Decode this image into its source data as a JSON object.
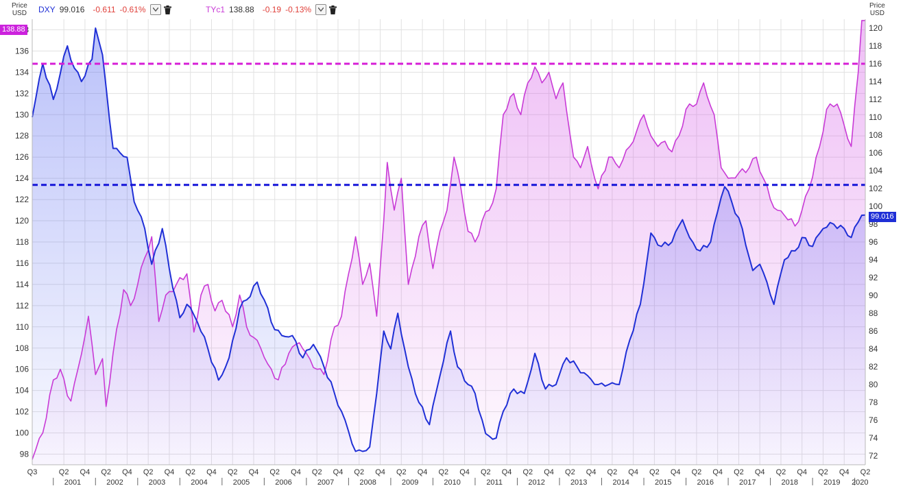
{
  "legend": {
    "dxy": {
      "symbol": "DXY",
      "price": "99.016",
      "change": "-0.611",
      "change_pct": "-0.61%"
    },
    "tyc1": {
      "symbol": "TYc1",
      "price": "138.88",
      "change": "-0.19",
      "change_pct": "-0.13%"
    }
  },
  "axes": {
    "left_title": [
      "Price",
      "USD"
    ],
    "right_title": [
      "Price",
      "USD"
    ]
  },
  "tags": {
    "left": "138.88",
    "right": "99.016"
  },
  "colors": {
    "dxy": "#1f2fd6",
    "tyc1": "#c83ad6",
    "dxy_ref": "#1414d8",
    "tyc1_ref": "#d61ed6",
    "tag_left": "#cc22dd",
    "tag_right": "#1f2fd6"
  },
  "chart_data": {
    "type": "line",
    "x_start": "2000-07",
    "x_end": "2020-04",
    "x_frequency": "monthly",
    "left_axis": {
      "series": "TYc1",
      "ylim": [
        97,
        139
      ],
      "ticks": [
        98,
        100,
        102,
        104,
        106,
        108,
        110,
        112,
        114,
        116,
        118,
        120,
        122,
        124,
        126,
        128,
        130,
        132,
        134,
        136,
        138
      ]
    },
    "right_axis": {
      "series": "DXY",
      "ylim": [
        71,
        121
      ],
      "ticks": [
        72,
        74,
        76,
        78,
        80,
        82,
        84,
        86,
        88,
        90,
        92,
        94,
        96,
        98,
        100,
        102,
        104,
        106,
        108,
        110,
        112,
        114,
        116,
        118,
        120
      ]
    },
    "x_ticks_quarter": [
      "Q3",
      "Q2",
      "Q4",
      "Q2",
      "Q4",
      "Q2",
      "Q4",
      "Q2",
      "Q4",
      "Q2",
      "Q4",
      "Q2",
      "Q4",
      "Q2",
      "Q4",
      "Q2",
      "Q4",
      "Q2",
      "Q4",
      "Q2",
      "Q4",
      "Q2",
      "Q4",
      "Q2",
      "Q4",
      "Q2",
      "Q4",
      "Q2",
      "Q4",
      "Q2",
      "Q4",
      "Q2",
      "Q4",
      "Q2",
      "Q4",
      "Q2",
      "Q4",
      "Q2",
      "Q4",
      "Q2"
    ],
    "x_ticks_year": [
      "2001",
      "2002",
      "2003",
      "2004",
      "2005",
      "2006",
      "2007",
      "2008",
      "2009",
      "2010",
      "2011",
      "2012",
      "2013",
      "2014",
      "2015",
      "2016",
      "2017",
      "2018",
      "2019",
      "2020"
    ],
    "reference_lines": [
      {
        "series": "TYc1",
        "value": 134.8
      },
      {
        "series": "DXY",
        "value": 102.4
      }
    ],
    "series": [
      {
        "name": "DXY",
        "axis": "right",
        "anchors": [
          [
            "2000-07",
            110
          ],
          [
            "2000-10",
            116
          ],
          [
            "2001-01",
            112
          ],
          [
            "2001-05",
            118
          ],
          [
            "2001-07",
            115.5
          ],
          [
            "2001-09",
            114
          ],
          [
            "2001-12",
            116.5
          ],
          [
            "2002-01",
            120
          ],
          [
            "2002-03",
            117
          ],
          [
            "2002-06",
            106.5
          ],
          [
            "2002-08",
            106
          ],
          [
            "2002-10",
            105.5
          ],
          [
            "2002-12",
            100.5
          ],
          [
            "2003-03",
            97.5
          ],
          [
            "2003-05",
            93.5
          ],
          [
            "2003-08",
            97.5
          ],
          [
            "2003-10",
            93
          ],
          [
            "2004-01",
            87.5
          ],
          [
            "2004-03",
            89
          ],
          [
            "2004-06",
            87
          ],
          [
            "2004-09",
            84
          ],
          [
            "2004-12",
            80.5
          ],
          [
            "2005-03",
            83
          ],
          [
            "2005-06",
            88.5
          ],
          [
            "2005-08",
            89.5
          ],
          [
            "2005-11",
            91.5
          ],
          [
            "2006-01",
            89.5
          ],
          [
            "2006-03",
            87
          ],
          [
            "2006-06",
            85.5
          ],
          [
            "2006-09",
            85.5
          ],
          [
            "2006-12",
            83
          ],
          [
            "2007-03",
            84.5
          ],
          [
            "2007-06",
            82
          ],
          [
            "2007-09",
            79
          ],
          [
            "2007-12",
            76
          ],
          [
            "2008-03",
            72.5
          ],
          [
            "2008-05",
            72.5
          ],
          [
            "2008-07",
            73
          ],
          [
            "2008-09",
            79
          ],
          [
            "2008-11",
            86
          ],
          [
            "2009-01",
            84
          ],
          [
            "2009-03",
            88
          ],
          [
            "2009-06",
            82
          ],
          [
            "2009-09",
            78
          ],
          [
            "2009-12",
            75.5
          ],
          [
            "2010-03",
            81
          ],
          [
            "2010-06",
            86
          ],
          [
            "2010-08",
            82
          ],
          [
            "2010-11",
            80
          ],
          [
            "2011-01",
            79
          ],
          [
            "2011-04",
            74.5
          ],
          [
            "2011-07",
            74
          ],
          [
            "2011-09",
            77
          ],
          [
            "2011-12",
            79.5
          ],
          [
            "2012-03",
            79
          ],
          [
            "2012-06",
            83.5
          ],
          [
            "2012-09",
            79.5
          ],
          [
            "2012-12",
            80
          ],
          [
            "2013-03",
            83
          ],
          [
            "2013-06",
            82
          ],
          [
            "2013-09",
            81
          ],
          [
            "2013-12",
            80
          ],
          [
            "2014-03",
            80
          ],
          [
            "2014-06",
            80
          ],
          [
            "2014-09",
            85
          ],
          [
            "2014-12",
            89
          ],
          [
            "2015-03",
            97
          ],
          [
            "2015-06",
            95.5
          ],
          [
            "2015-09",
            96
          ],
          [
            "2015-12",
            98.5
          ],
          [
            "2016-02",
            96.5
          ],
          [
            "2016-05",
            95
          ],
          [
            "2016-08",
            96
          ],
          [
            "2016-11",
            101
          ],
          [
            "2016-12",
            102.2
          ],
          [
            "2017-02",
            100.5
          ],
          [
            "2017-05",
            97.5
          ],
          [
            "2017-08",
            92.8
          ],
          [
            "2017-10",
            93.5
          ],
          [
            "2017-12",
            91.5
          ],
          [
            "2018-02",
            89
          ],
          [
            "2018-05",
            94
          ],
          [
            "2018-08",
            95
          ],
          [
            "2018-10",
            96.5
          ],
          [
            "2019-01",
            95.5
          ],
          [
            "2019-04",
            97.5
          ],
          [
            "2019-07",
            98
          ],
          [
            "2019-10",
            97.5
          ],
          [
            "2019-12",
            96.5
          ],
          [
            "2020-03",
            99
          ],
          [
            "2020-04",
            99.016
          ]
        ]
      },
      {
        "name": "TYc1",
        "axis": "left",
        "anchors": [
          [
            "2000-07",
            97.5
          ],
          [
            "2000-10",
            100
          ],
          [
            "2001-01",
            105
          ],
          [
            "2001-03",
            106
          ],
          [
            "2001-05",
            103.5
          ],
          [
            "2001-06",
            103
          ],
          [
            "2001-08",
            106
          ],
          [
            "2001-11",
            111
          ],
          [
            "2002-01",
            105.5
          ],
          [
            "2002-03",
            107
          ],
          [
            "2002-04",
            102.5
          ],
          [
            "2002-06",
            107.5
          ],
          [
            "2002-09",
            113.5
          ],
          [
            "2002-11",
            112
          ],
          [
            "2003-01",
            114
          ],
          [
            "2003-03",
            116.5
          ],
          [
            "2003-05",
            118.5
          ],
          [
            "2003-07",
            110.5
          ],
          [
            "2003-09",
            113
          ],
          [
            "2003-12",
            114
          ],
          [
            "2004-03",
            115
          ],
          [
            "2004-05",
            109.5
          ],
          [
            "2004-07",
            113
          ],
          [
            "2004-09",
            114
          ],
          [
            "2004-11",
            111.5
          ],
          [
            "2005-01",
            112.5
          ],
          [
            "2005-04",
            110
          ],
          [
            "2005-06",
            113
          ],
          [
            "2005-08",
            110
          ],
          [
            "2005-10",
            109
          ],
          [
            "2005-12",
            108
          ],
          [
            "2006-02",
            106.5
          ],
          [
            "2006-05",
            105
          ],
          [
            "2006-08",
            107.5
          ],
          [
            "2006-11",
            108.5
          ],
          [
            "2007-01",
            107.5
          ],
          [
            "2007-04",
            106
          ],
          [
            "2007-06",
            105.5
          ],
          [
            "2007-09",
            110
          ],
          [
            "2007-11",
            111
          ],
          [
            "2008-01",
            115
          ],
          [
            "2008-03",
            118.5
          ],
          [
            "2008-05",
            114
          ],
          [
            "2008-07",
            116
          ],
          [
            "2008-09",
            111
          ],
          [
            "2008-11",
            120
          ],
          [
            "2008-12",
            125.5
          ],
          [
            "2009-02",
            121
          ],
          [
            "2009-04",
            124
          ],
          [
            "2009-06",
            114
          ],
          [
            "2009-09",
            118.5
          ],
          [
            "2009-11",
            120
          ],
          [
            "2010-01",
            115.5
          ],
          [
            "2010-03",
            119
          ],
          [
            "2010-05",
            121
          ],
          [
            "2010-07",
            126
          ],
          [
            "2010-09",
            123
          ],
          [
            "2010-11",
            119
          ],
          [
            "2011-01",
            118
          ],
          [
            "2011-03",
            120
          ],
          [
            "2011-05",
            121
          ],
          [
            "2011-07",
            123
          ],
          [
            "2011-09",
            130
          ],
          [
            "2011-12",
            132
          ],
          [
            "2012-02",
            130
          ],
          [
            "2012-04",
            133
          ],
          [
            "2012-06",
            134.5
          ],
          [
            "2012-08",
            133
          ],
          [
            "2012-10",
            134
          ],
          [
            "2012-12",
            131.5
          ],
          [
            "2013-02",
            133
          ],
          [
            "2013-05",
            126
          ],
          [
            "2013-07",
            125
          ],
          [
            "2013-09",
            127
          ],
          [
            "2013-11",
            124
          ],
          [
            "2013-12",
            123
          ],
          [
            "2014-03",
            126
          ],
          [
            "2014-06",
            125
          ],
          [
            "2014-09",
            127
          ],
          [
            "2014-11",
            128.5
          ],
          [
            "2015-01",
            130
          ],
          [
            "2015-03",
            128
          ],
          [
            "2015-05",
            127
          ],
          [
            "2015-07",
            127.5
          ],
          [
            "2015-09",
            126.5
          ],
          [
            "2015-11",
            128
          ],
          [
            "2016-01",
            130.5
          ],
          [
            "2016-04",
            131
          ],
          [
            "2016-06",
            133
          ],
          [
            "2016-09",
            130
          ],
          [
            "2016-11",
            125
          ],
          [
            "2017-01",
            124
          ],
          [
            "2017-04",
            124.5
          ],
          [
            "2017-07",
            125
          ],
          [
            "2017-09",
            126
          ],
          [
            "2017-11",
            124
          ],
          [
            "2018-01",
            122
          ],
          [
            "2018-03",
            121
          ],
          [
            "2018-05",
            120.5
          ],
          [
            "2018-08",
            119.5
          ],
          [
            "2018-10",
            121
          ],
          [
            "2018-12",
            123
          ],
          [
            "2019-03",
            127
          ],
          [
            "2019-05",
            130.5
          ],
          [
            "2019-08",
            131
          ],
          [
            "2019-10",
            129
          ],
          [
            "2019-12",
            127
          ],
          [
            "2020-02",
            134
          ],
          [
            "2020-03",
            138.88
          ],
          [
            "2020-04",
            138.88
          ]
        ]
      }
    ]
  }
}
